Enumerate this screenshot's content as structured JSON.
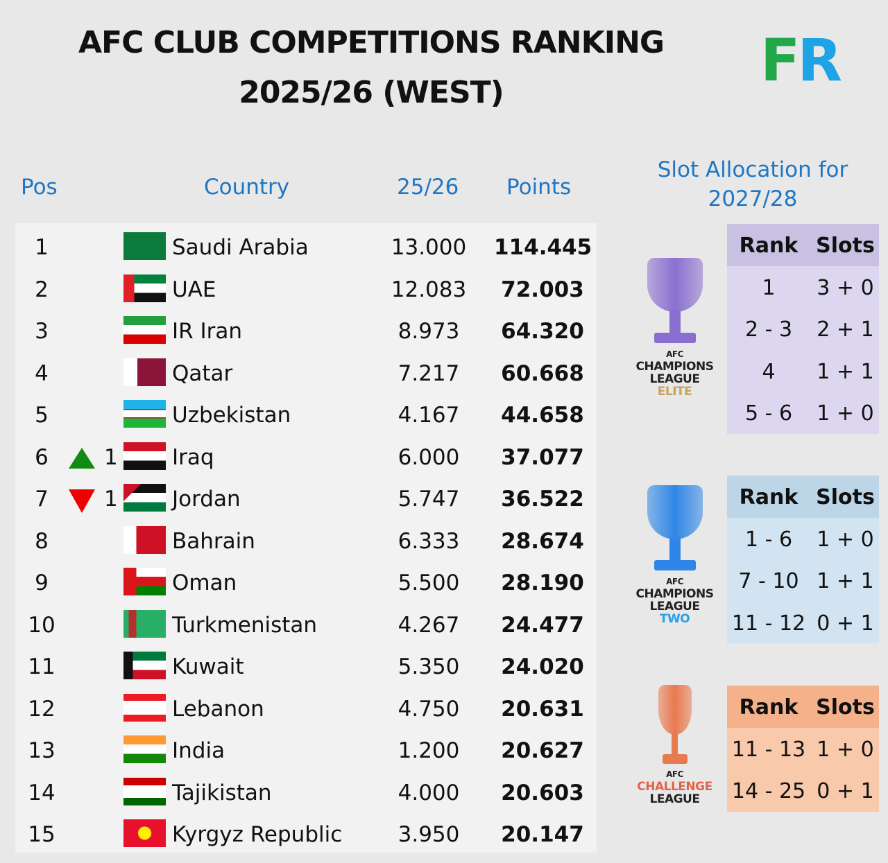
{
  "title_line1": "AFC CLUB COMPETITIONS RANKING",
  "title_line2": "2025/26 (WEST)",
  "logo": {
    "text_f": "F",
    "text_r": "R",
    "colors": {
      "f": "#22a84a",
      "r": "#1ea3e6"
    }
  },
  "headers": {
    "pos": "Pos",
    "country": "Country",
    "season": "25/26",
    "points": "Points"
  },
  "rows": [
    {
      "pos": "1",
      "country": "Saudi Arabia",
      "flag": "saudi-arabia",
      "season": "13.000",
      "points": "114.445",
      "change": "",
      "dir": ""
    },
    {
      "pos": "2",
      "country": "UAE",
      "flag": "uae",
      "season": "12.083",
      "points": "72.003",
      "change": "",
      "dir": ""
    },
    {
      "pos": "3",
      "country": "IR Iran",
      "flag": "iran",
      "season": "8.973",
      "points": "64.320",
      "change": "",
      "dir": ""
    },
    {
      "pos": "4",
      "country": "Qatar",
      "flag": "qatar",
      "season": "7.217",
      "points": "60.668",
      "change": "",
      "dir": ""
    },
    {
      "pos": "5",
      "country": "Uzbekistan",
      "flag": "uzbekistan",
      "season": "4.167",
      "points": "44.658",
      "change": "",
      "dir": ""
    },
    {
      "pos": "6",
      "country": "Iraq",
      "flag": "iraq",
      "season": "6.000",
      "points": "37.077",
      "change": "1",
      "dir": "up"
    },
    {
      "pos": "7",
      "country": "Jordan",
      "flag": "jordan",
      "season": "5.747",
      "points": "36.522",
      "change": "1",
      "dir": "down"
    },
    {
      "pos": "8",
      "country": "Bahrain",
      "flag": "bahrain",
      "season": "6.333",
      "points": "28.674",
      "change": "",
      "dir": ""
    },
    {
      "pos": "9",
      "country": "Oman",
      "flag": "oman",
      "season": "5.500",
      "points": "28.190",
      "change": "",
      "dir": ""
    },
    {
      "pos": "10",
      "country": "Turkmenistan",
      "flag": "turkmenistan",
      "season": "4.267",
      "points": "24.477",
      "change": "",
      "dir": ""
    },
    {
      "pos": "11",
      "country": "Kuwait",
      "flag": "kuwait",
      "season": "5.350",
      "points": "24.020",
      "change": "",
      "dir": ""
    },
    {
      "pos": "12",
      "country": "Lebanon",
      "flag": "lebanon",
      "season": "4.750",
      "points": "20.631",
      "change": "",
      "dir": ""
    },
    {
      "pos": "13",
      "country": "India",
      "flag": "india",
      "season": "1.200",
      "points": "20.627",
      "change": "",
      "dir": ""
    },
    {
      "pos": "14",
      "country": "Tajikistan",
      "flag": "tajikistan",
      "season": "4.000",
      "points": "20.603",
      "change": "",
      "dir": ""
    },
    {
      "pos": "15",
      "country": "Kyrgyz Republic",
      "flag": "kyrgyzstan",
      "season": "3.950",
      "points": "20.147",
      "change": "",
      "dir": ""
    }
  ],
  "slots_title_line1": "Slot Allocation for",
  "slots_title_line2": "2027/28",
  "competitions": [
    {
      "name_lines": [
        "AFC",
        "CHAMPIONS",
        "LEAGUE",
        "ELITE"
      ],
      "header_color": "#c9c1e2",
      "body_color": "#dcd7ee",
      "cup_color": "#8a6fd0",
      "col_rank": "Rank",
      "col_slots": "Slots",
      "rows": [
        {
          "rank": "1",
          "slots": "3 + 0"
        },
        {
          "rank": "2 - 3",
          "slots": "2 + 1"
        },
        {
          "rank": "4",
          "slots": "1 + 1"
        },
        {
          "rank": "5 - 6",
          "slots": "1 + 0"
        }
      ]
    },
    {
      "name_lines": [
        "AFC",
        "CHAMPIONS",
        "LEAGUE",
        "TWO"
      ],
      "header_color": "#bcd6e8",
      "body_color": "#d2e4f1",
      "cup_color": "#2f86e6",
      "col_rank": "Rank",
      "col_slots": "Slots",
      "rows": [
        {
          "rank": "1 - 6",
          "slots": "1 + 0"
        },
        {
          "rank": "7 - 10",
          "slots": "1 + 1"
        },
        {
          "rank": "11 - 12",
          "slots": "0 + 1"
        }
      ]
    },
    {
      "name_lines": [
        "AFC",
        "CHALLENGE",
        "LEAGUE"
      ],
      "header_color": "#f5b28a",
      "body_color": "#f8c9aa",
      "cup_color": "#e87a4f",
      "col_rank": "Rank",
      "col_slots": "Slots",
      "rows": [
        {
          "rank": "11 - 13",
          "slots": "1 + 0"
        },
        {
          "rank": "14 - 25",
          "slots": "0 + 1"
        }
      ]
    }
  ]
}
